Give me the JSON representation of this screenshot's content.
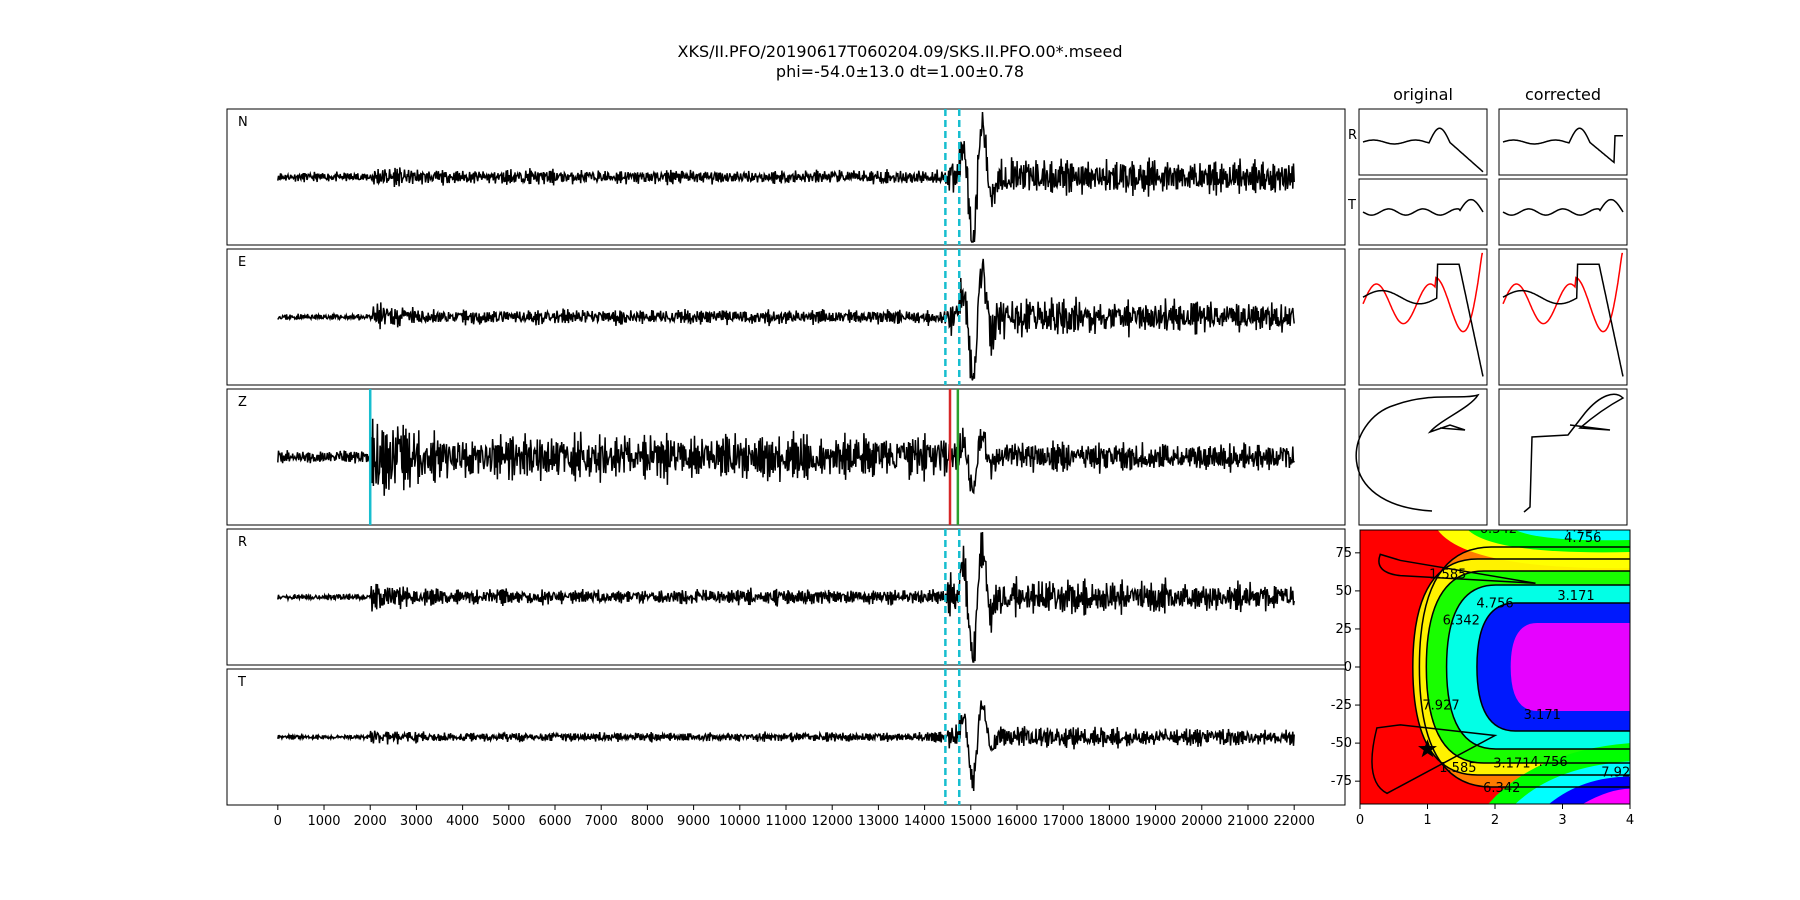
{
  "chart_data": {
    "type": "line",
    "title": "XKS/II.PFO/20190617T060204.09/SKS.II.PFO.00*.mseed",
    "subtitle": "phi=-54.0±13.0 dt=1.00±0.78",
    "traces": {
      "x_ticks": [
        0,
        1000,
        2000,
        3000,
        4000,
        5000,
        6000,
        7000,
        8000,
        9000,
        10000,
        11000,
        12000,
        13000,
        14000,
        15000,
        16000,
        17000,
        18000,
        19000,
        20000,
        21000,
        22000
      ],
      "xlim": [
        -1100,
        23100
      ],
      "x_range": [
        0,
        22000
      ],
      "channels": [
        {
          "name": "N",
          "noise": 0.1,
          "burst": 0.14,
          "coda": 0.38,
          "peak": 1.0,
          "seed": 11
        },
        {
          "name": "E",
          "noise": 0.07,
          "burst": 0.22,
          "coda": 0.42,
          "peak": 0.9,
          "seed": 23
        },
        {
          "name": "Z",
          "noise": 0.15,
          "burst": 0.75,
          "coda": 0.22,
          "peak": 0.5,
          "seed": 37
        },
        {
          "name": "R",
          "noise": 0.07,
          "burst": 0.22,
          "coda": 0.38,
          "peak": 1.0,
          "seed": 51
        },
        {
          "name": "T",
          "noise": 0.05,
          "burst": 0.12,
          "coda": 0.22,
          "peak": 0.7,
          "seed": 67
        }
      ],
      "window_lines": [
        14450,
        14750
      ],
      "z_markers": [
        {
          "x": 2000,
          "color": "#17becf"
        },
        {
          "x": 14550,
          "color": "#d62728"
        },
        {
          "x": 14720,
          "color": "#2ca02c"
        }
      ]
    },
    "column_titles": [
      "original",
      "corrected"
    ],
    "small_panel_labels": [
      "R",
      "T"
    ],
    "error_surface": {
      "x_ticks": [
        0,
        1,
        2,
        3,
        4
      ],
      "xlim": [
        0,
        4
      ],
      "y_ticks": [
        75,
        50,
        25,
        0,
        -25,
        -50,
        -75
      ],
      "ylim": [
        -90,
        90
      ],
      "contour_levels": [
        "1.585",
        "3.171",
        "4.756",
        "6.342",
        "7.927"
      ],
      "minimum": {
        "dt": 1.0,
        "phi": -54.0
      }
    },
    "colors": {
      "trace": "#000000",
      "window": "#17becf",
      "pick_start": "#17becf",
      "pick_red": "#d62728",
      "pick_green": "#2ca02c",
      "particle_red": "#ff0000"
    }
  }
}
